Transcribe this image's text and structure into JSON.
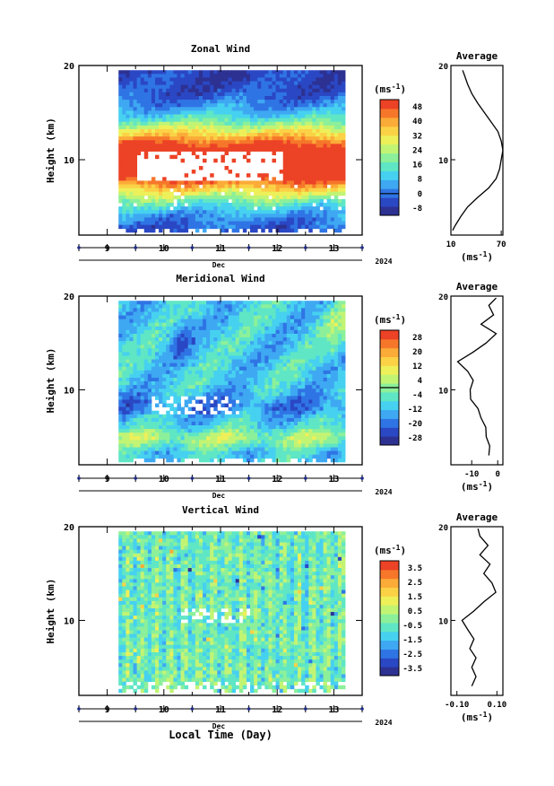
{
  "figure": {
    "xlabel": "Local Time (Day)",
    "year_label": "2024",
    "month_label": "Dec"
  },
  "colors": {
    "palette": [
      "#2d3192",
      "#2a47c4",
      "#2f74e4",
      "#3ea8f2",
      "#46d1f0",
      "#5fe6c5",
      "#8cf09a",
      "#c2f474",
      "#eef05a",
      "#fbd246",
      "#fbab38",
      "#f6772a",
      "#ec4226"
    ]
  },
  "chart_data": [
    {
      "id": "zonal",
      "type": "heatmap",
      "title": "Zonal Wind",
      "ylabel": "Height (km)",
      "x_ticks": [
        "9",
        "10",
        "11",
        "12",
        "13"
      ],
      "x_range": [
        8.5,
        13.5
      ],
      "ylim": [
        2,
        20
      ],
      "y_ticks": [
        "20",
        "10"
      ],
      "colorbar_unit": "(ms-1)",
      "colorbar_ticks": [
        "48",
        "40",
        "32",
        "24",
        "16",
        "8",
        "0",
        "-8"
      ],
      "colorbar_range": [
        -12,
        52
      ],
      "zero_contour": true,
      "data_x_range": [
        9.2,
        13.2
      ],
      "data_y_range": [
        2.3,
        19.5
      ],
      "avg_title": "Average",
      "avg_xlabel": "(ms-1)",
      "avg_x_ticks": [
        "10",
        "70"
      ],
      "avg_xlim": [
        10,
        72
      ],
      "avg_profile": {
        "height": [
          2.5,
          3,
          4,
          5,
          6,
          7,
          8,
          9,
          10,
          11,
          12,
          13,
          14,
          15,
          16,
          17,
          18,
          19,
          19.5
        ],
        "value": [
          12,
          15,
          22,
          30,
          42,
          55,
          64,
          68,
          70,
          72,
          70,
          66,
          58,
          50,
          42,
          35,
          30,
          26,
          24
        ]
      }
    },
    {
      "id": "meridional",
      "type": "heatmap",
      "title": "Meridional Wind",
      "ylabel": "Height (km)",
      "x_ticks": [
        "9",
        "10",
        "11",
        "12",
        "13"
      ],
      "x_range": [
        8.5,
        13.5
      ],
      "ylim": [
        2,
        20
      ],
      "y_ticks": [
        "20",
        "10"
      ],
      "colorbar_unit": "(ms-1)",
      "colorbar_ticks": [
        "28",
        "20",
        "12",
        "4",
        "-4",
        "-12",
        "-20",
        "-28"
      ],
      "colorbar_range": [
        -32,
        32
      ],
      "zero_contour": true,
      "data_x_range": [
        9.2,
        13.2
      ],
      "data_y_range": [
        2.3,
        19.5
      ],
      "avg_title": "Average",
      "avg_xlabel": "(ms-1)",
      "avg_x_ticks": [
        "-10",
        "0"
      ],
      "avg_xlim": [
        -18,
        2
      ],
      "avg_profile": {
        "height": [
          3,
          4,
          5,
          6,
          7,
          8,
          9,
          10,
          11,
          12,
          13,
          14,
          15,
          16,
          17,
          18,
          19,
          19.8
        ],
        "value": [
          -3,
          -3.5,
          -4,
          -5,
          -6,
          -8,
          -10,
          -11,
          -9,
          -12,
          -15,
          -10,
          -4,
          -1,
          -6,
          -2,
          -3,
          -1
        ]
      }
    },
    {
      "id": "vertical",
      "type": "heatmap",
      "title": "Vertical Wind",
      "ylabel": "Height (km)",
      "x_ticks": [
        "9",
        "10",
        "11",
        "12",
        "13"
      ],
      "x_range": [
        8.5,
        13.5
      ],
      "ylim": [
        2,
        20
      ],
      "y_ticks": [
        "20",
        "10"
      ],
      "colorbar_unit": "(ms-1)",
      "colorbar_ticks": [
        "3.5",
        "2.5",
        "1.5",
        "0.5",
        "-0.5",
        "-1.5",
        "-2.5",
        "-3.5"
      ],
      "colorbar_range": [
        -4,
        4
      ],
      "zero_contour": false,
      "data_x_range": [
        9.2,
        13.2
      ],
      "data_y_range": [
        2.3,
        19.5
      ],
      "avg_title": "Average",
      "avg_xlabel": "(ms-1)",
      "avg_x_ticks": [
        "-0.10",
        "0.10"
      ],
      "avg_xlim": [
        -0.13,
        0.13
      ],
      "avg_profile": {
        "height": [
          3,
          4,
          5,
          6,
          7,
          8,
          9,
          10,
          11,
          12,
          13,
          14,
          15,
          16,
          17,
          18,
          19,
          19.8
        ],
        "value": [
          -0.02,
          -0.01,
          -0.02,
          -0.01,
          -0.03,
          -0.02,
          -0.04,
          -0.08,
          -0.01,
          0.03,
          0.1,
          0.07,
          0.04,
          0.06,
          0.02,
          0.05,
          0.02,
          0.0
        ]
      }
    }
  ]
}
